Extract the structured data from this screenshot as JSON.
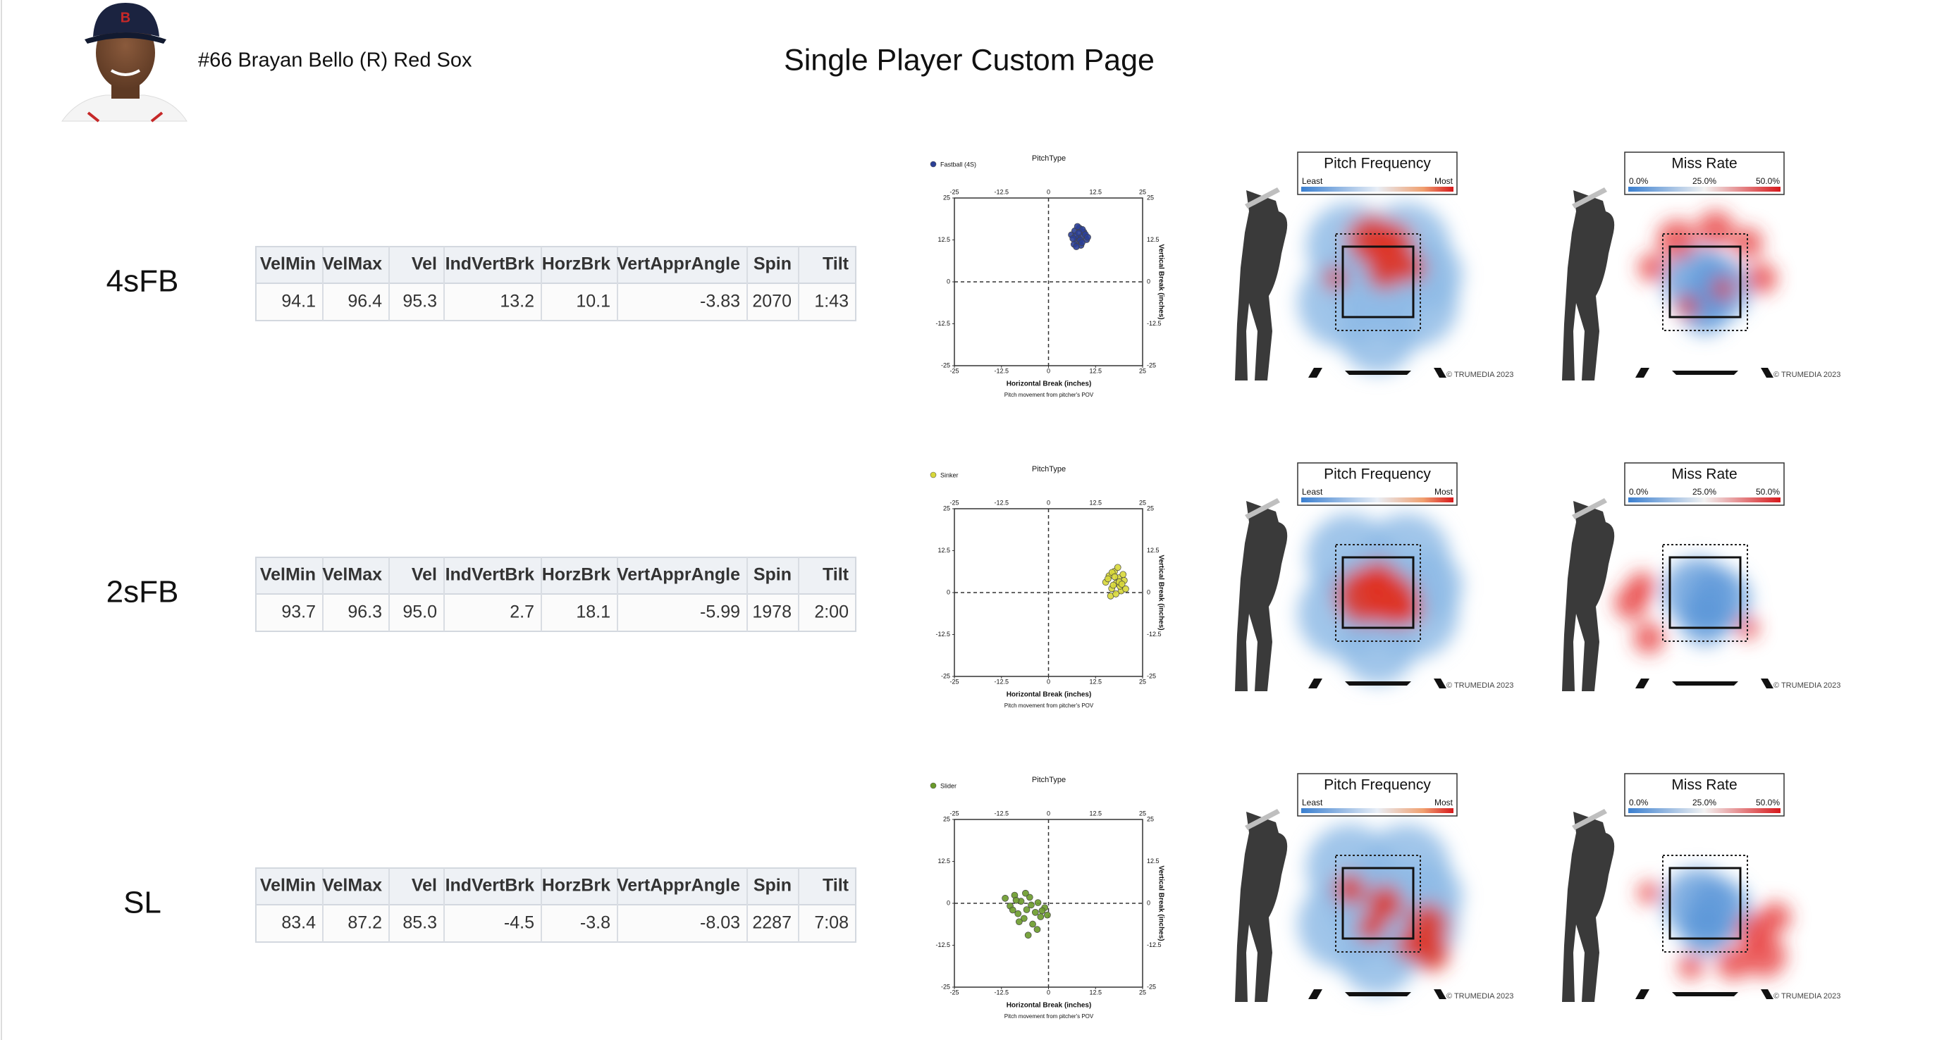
{
  "header": {
    "player": "#66 Brayan Bello (R) Red Sox",
    "title": "Single Player Custom Page"
  },
  "columns": [
    "VelMin",
    "VelMax",
    "Vel",
    "IndVertBrk",
    "HorzBrk",
    "VertApprAngle",
    "Spin",
    "Tilt"
  ],
  "rows": [
    {
      "label": "4sFB",
      "cells": [
        "94.1",
        "96.4",
        "95.3",
        "13.2",
        "10.1",
        "-3.83",
        "2070",
        "1:43"
      ]
    },
    {
      "label": "2sFB",
      "cells": [
        "93.7",
        "96.3",
        "95.0",
        "2.7",
        "18.1",
        "-5.99",
        "1978",
        "2:00"
      ]
    },
    {
      "label": "SL",
      "cells": [
        "83.4",
        "87.2",
        "85.3",
        "-4.5",
        "-3.8",
        "-8.03",
        "2287",
        "7:08"
      ]
    }
  ],
  "chart_data": [
    {
      "type": "scatter",
      "title": "PitchType",
      "xlabel": "Horizontal Break (inches)",
      "ylabel": "Vertical Break (inches)",
      "note": "Pitch movement from pitcher's POV",
      "xlim": [
        -25,
        25
      ],
      "ylim": [
        -25,
        25
      ],
      "xticks": [
        -25,
        -12.5,
        0,
        12.5,
        25
      ],
      "yticks": [
        -25,
        -12.5,
        0,
        12.5,
        25
      ],
      "series": [
        {
          "name": "Fastball (4S)",
          "color": "#2b3f96",
          "x": [
            6.1,
            7.0,
            7.5,
            8.2,
            8.8,
            9.4,
            10.1,
            6.8,
            7.9,
            8.6,
            9.0,
            7.2,
            8.4,
            9.8,
            6.5,
            7.7,
            8.9,
            10.4,
            8.0,
            7.4
          ],
          "values": [
            14.0,
            15.2,
            12.1,
            16.0,
            13.5,
            14.8,
            12.6,
            11.2,
            13.0,
            10.9,
            15.6,
            13.7,
            12.4,
            14.1,
            12.9,
            16.5,
            11.7,
            13.3,
            14.6,
            10.5
          ]
        }
      ]
    },
    {
      "type": "scatter",
      "title": "PitchType",
      "xlabel": "Horizontal Break (inches)",
      "ylabel": "Vertical Break (inches)",
      "note": "Pitch movement from pitcher's POV",
      "xlim": [
        -25,
        25
      ],
      "ylim": [
        -25,
        25
      ],
      "xticks": [
        -25,
        -12.5,
        0,
        12.5,
        25
      ],
      "yticks": [
        -25,
        -12.5,
        0,
        12.5,
        25
      ],
      "series": [
        {
          "name": "Sinker",
          "color": "#d8d83a",
          "x": [
            15.2,
            16.1,
            16.8,
            17.5,
            18.0,
            18.6,
            19.3,
            20.1,
            16.5,
            17.2,
            18.4,
            19.0,
            19.8,
            15.8,
            17.9,
            18.8,
            20.5,
            16.9,
            17.6,
            19.5
          ],
          "values": [
            3.1,
            5.0,
            1.2,
            6.3,
            2.8,
            4.4,
            0.5,
            3.6,
            -1.0,
            2.2,
            7.5,
            1.9,
            5.4,
            4.1,
            -0.4,
            3.2,
            1.1,
            6.0,
            4.7,
            2.5
          ]
        }
      ]
    },
    {
      "type": "scatter",
      "title": "PitchType",
      "xlabel": "Horizontal Break (inches)",
      "ylabel": "Vertical Break (inches)",
      "note": "Pitch movement from pitcher's POV",
      "xlim": [
        -25,
        25
      ],
      "ylim": [
        -25,
        25
      ],
      "xticks": [
        -25,
        -12.5,
        0,
        12.5,
        25
      ],
      "yticks": [
        -25,
        -12.5,
        0,
        12.5,
        25
      ],
      "series": [
        {
          "name": "Slider",
          "color": "#6a9a2a",
          "x": [
            -11.5,
            -10.2,
            -9.0,
            -8.1,
            -7.3,
            -6.5,
            -5.8,
            -5.0,
            -4.2,
            -3.5,
            -2.8,
            -2.1,
            -1.0,
            -0.3,
            -9.5,
            -7.8,
            -6.1,
            -4.6,
            -3.0,
            -1.7,
            -5.4,
            -8.6
          ],
          "values": [
            1.5,
            -0.8,
            2.4,
            -3.1,
            0.6,
            -4.5,
            -1.9,
            1.8,
            -6.2,
            -2.7,
            0.2,
            -4.0,
            -1.3,
            -3.5,
            -2.0,
            -5.5,
            3.0,
            -0.5,
            -7.8,
            -2.2,
            -9.5,
            0.9
          ]
        }
      ]
    }
  ],
  "heatmaps": {
    "frequency": {
      "title": "Pitch Frequency",
      "low": "Least",
      "high": "Most"
    },
    "miss": {
      "title": "Miss Rate",
      "ticks": [
        "0.0%",
        "25.0%",
        "50.0%"
      ]
    },
    "credit": "© TRUMEDIA 2023"
  }
}
